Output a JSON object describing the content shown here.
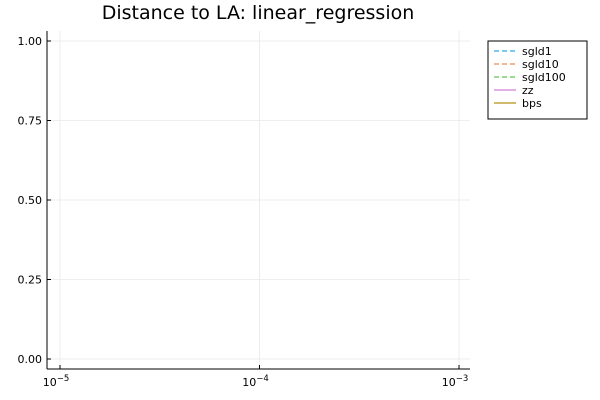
{
  "chart_data": {
    "type": "line",
    "title": "Distance to LA: linear_regression",
    "xlabel": "",
    "ylabel": "",
    "xscale": "log",
    "xlim": [
      1e-05,
      0.001
    ],
    "ylim": [
      0,
      1
    ],
    "grid": true,
    "legend_position": "top-right",
    "x_ticks": [
      {
        "value": 1e-05,
        "base": "10",
        "exp": "−5"
      },
      {
        "value": 0.0001,
        "base": "10",
        "exp": "−4"
      },
      {
        "value": 0.001,
        "base": "10",
        "exp": "−3"
      }
    ],
    "y_ticks": [
      {
        "value": 0,
        "label": "0.00"
      },
      {
        "value": 0.25,
        "label": "0.25"
      },
      {
        "value": 0.5,
        "label": "0.50"
      },
      {
        "value": 0.75,
        "label": "0.75"
      },
      {
        "value": 1,
        "label": "1.00"
      }
    ],
    "series": [
      {
        "name": "sgld1",
        "color": "#5fb4e8",
        "dashed": true,
        "x": [],
        "y": []
      },
      {
        "name": "sgld10",
        "color": "#e6a27a",
        "dashed": true,
        "x": [],
        "y": []
      },
      {
        "name": "sgld100",
        "color": "#7fcb75",
        "dashed": true,
        "x": [],
        "y": []
      },
      {
        "name": "zz",
        "color": "#d895dc",
        "dashed": false,
        "x": [],
        "y": []
      },
      {
        "name": "bps",
        "color": "#c4a33c",
        "dashed": false,
        "x": [],
        "y": []
      }
    ]
  }
}
